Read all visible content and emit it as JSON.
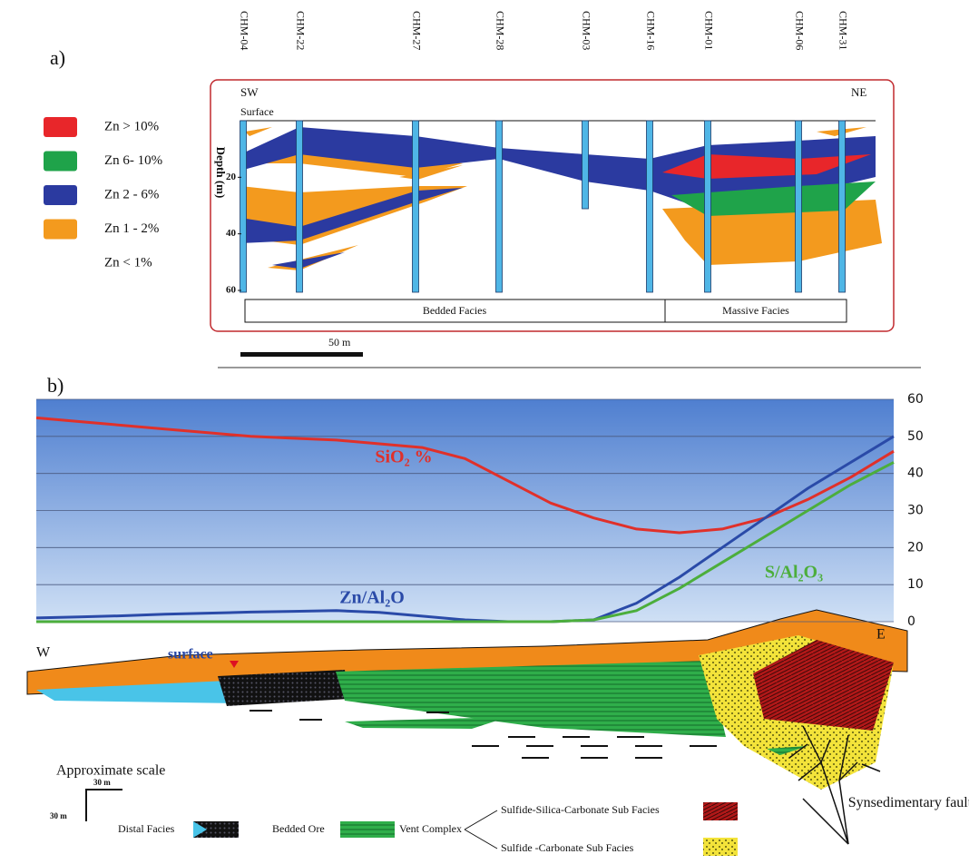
{
  "panel_a": {
    "label": "a)",
    "drill_holes": [
      "CHM-04",
      "CHM-22",
      "CHM-27",
      "CHM-28",
      "CHM-03",
      "CHM-16",
      "CHM-01",
      "CHM-06",
      "CHM-31"
    ],
    "left_direction": "SW",
    "right_direction": "NE",
    "surface_label": "Surface",
    "depth_title": "Depth (m)",
    "depth_lim": [
      0,
      60
    ],
    "depth_ticks": [
      20,
      40,
      60
    ],
    "legend": [
      {
        "label": "Zn  > 10%",
        "color": "#e8262a"
      },
      {
        "label": "Zn  6- 10%",
        "color": "#1fa34a"
      },
      {
        "label": "Zn  2 - 6%",
        "color": "#2b3aa0"
      },
      {
        "label": "Zn  1 - 2%",
        "color": "#f39a1e"
      },
      {
        "label": "Zn  < 1%",
        "color": "#ffffff"
      }
    ],
    "facies": [
      "Bedded Facies",
      "Massive Facies"
    ],
    "scale_bar": "50 m"
  },
  "panel_b": {
    "label": "b)",
    "ylim": [
      0,
      60
    ],
    "yticks": [
      0,
      10,
      20,
      30,
      40,
      50,
      60
    ],
    "series": [
      {
        "name": "SiO₂ %",
        "color": "#e0302a",
        "values": [
          55,
          54,
          53,
          52,
          51,
          50,
          49.5,
          49,
          48,
          47,
          44,
          38,
          32,
          28,
          25,
          24,
          25,
          28,
          33,
          39,
          46
        ]
      },
      {
        "name": "Zn/Al₂O",
        "color": "#2a4aa8",
        "values": [
          1,
          1.3,
          1.6,
          2,
          2.3,
          2.6,
          2.8,
          3,
          2.5,
          1.5,
          0.5,
          0,
          0,
          0.5,
          5,
          12,
          20,
          28,
          36,
          43,
          50
        ]
      },
      {
        "name": "S/Al₂O₃",
        "color": "#4cae3c",
        "values": [
          0,
          0,
          0,
          0,
          0,
          0,
          0,
          0,
          0,
          0,
          0,
          0,
          0,
          0.5,
          3,
          9,
          16,
          23,
          30,
          37,
          43
        ]
      }
    ]
  },
  "panel_c": {
    "west": "W",
    "east": "E",
    "surface": "surface",
    "scale_title": "Approximate scale",
    "scale_h": "30 m",
    "scale_v": "30 m",
    "distal": "Distal Facies",
    "bedded": "Bedded Ore",
    "vent": "Vent Complex",
    "ssc": "Sulfide-Silica-Carbonate Sub Facies",
    "sc": "Sulfide -Carbonate Sub Facies",
    "fault": "Synsedimentary fault"
  }
}
